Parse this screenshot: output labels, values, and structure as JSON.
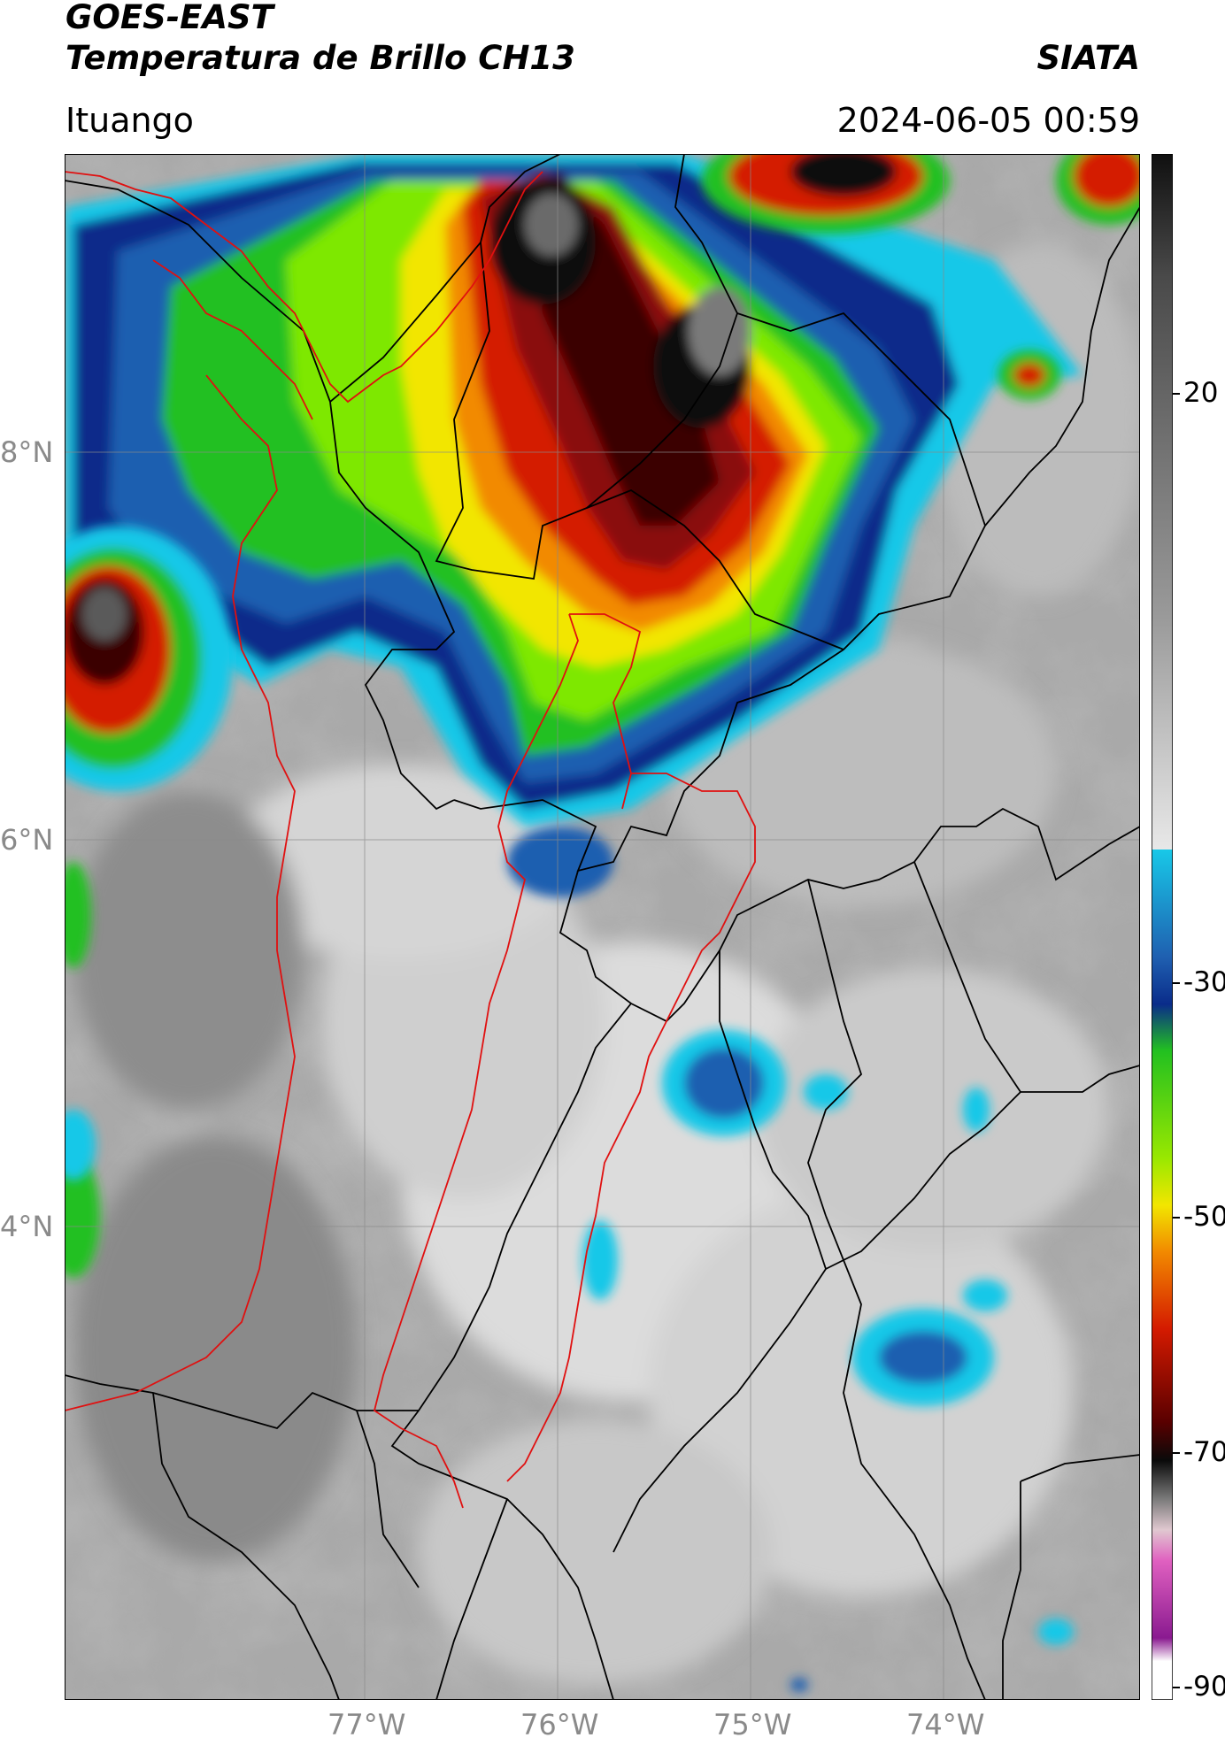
{
  "header": {
    "satellite": "GOES-EAST",
    "product": "Temperatura de Brillo CH13",
    "organization": "SIATA",
    "region": "Ituango",
    "timestamp": "2024-06-05 00:59"
  },
  "map": {
    "lat_labels": [
      "8°N",
      "6°N",
      "4°N"
    ],
    "lon_labels": [
      "77°W",
      "76°W",
      "75°W",
      "74°W"
    ],
    "extent_lon": [
      -78.55,
      -72.55
    ],
    "extent_lat": [
      2.25,
      9.55
    ]
  },
  "colorbar": {
    "tick_labels": [
      "20",
      "-30",
      "-50",
      "-70",
      "-90"
    ],
    "colors": {
      "warm_gray": "#8a8a8a",
      "light": "#f2f2f2",
      "cyan": "#18c8e8",
      "blue": "#0a2c8a",
      "green": "#22c020",
      "yellow": "#f2e600",
      "orange": "#f28a00",
      "red": "#d41a00",
      "dark_red": "#3a0000",
      "black": "#0a0a0a",
      "pink": "#e060c0",
      "purple": "#8a1a90"
    }
  },
  "lines": {
    "borders_color": "#000000",
    "rivers_color": "#e01010"
  }
}
